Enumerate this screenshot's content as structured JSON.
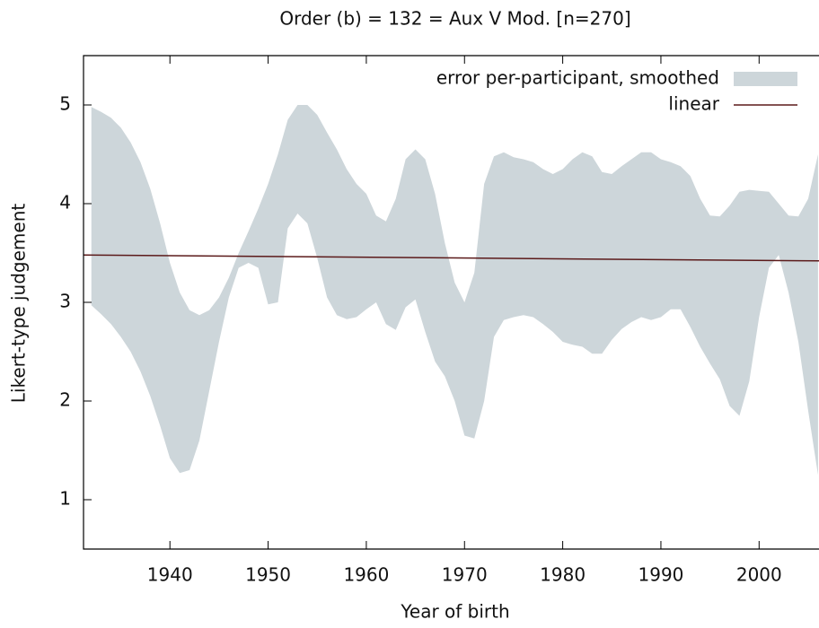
{
  "chart_data": {
    "type": "band_line",
    "title": "Order (b) = 132 = Aux V Mod. [n=270]",
    "xlabel": "Year of birth",
    "ylabel": "Likert-type judgement",
    "xlim": [
      1931.2,
      2006.1
    ],
    "ylim": [
      0.5,
      5.5
    ],
    "xticks": [
      1940,
      1950,
      1960,
      1970,
      1980,
      1990,
      2000
    ],
    "yticks": [
      1,
      2,
      3,
      4,
      5
    ],
    "legend": "top right",
    "band": {
      "name": "error per-participant, smoothed",
      "color": "#cdd6da",
      "x": [
        1932,
        1933,
        1934,
        1935,
        1936,
        1937,
        1938,
        1939,
        1940,
        1941,
        1942,
        1943,
        1944,
        1945,
        1946,
        1947,
        1948,
        1949,
        1950,
        1951,
        1952,
        1953,
        1954,
        1955,
        1956,
        1957,
        1958,
        1959,
        1960,
        1961,
        1962,
        1963,
        1964,
        1965,
        1966,
        1967,
        1968,
        1969,
        1970,
        1971,
        1972,
        1973,
        1974,
        1975,
        1976,
        1977,
        1978,
        1979,
        1980,
        1981,
        1982,
        1983,
        1984,
        1985,
        1986,
        1987,
        1988,
        1989,
        1990,
        1991,
        1992,
        1993,
        1994,
        1995,
        1996,
        1997,
        1998,
        1999,
        2000,
        2001,
        2002,
        2003,
        2004,
        2005,
        2006
      ],
      "upper": [
        4.98,
        4.93,
        4.87,
        4.77,
        4.62,
        4.42,
        4.15,
        3.8,
        3.4,
        3.1,
        2.92,
        2.87,
        2.92,
        3.05,
        3.25,
        3.5,
        3.72,
        3.95,
        4.2,
        4.5,
        4.85,
        5.0,
        5.0,
        4.9,
        4.72,
        4.55,
        4.35,
        4.2,
        4.1,
        3.88,
        3.82,
        4.05,
        4.45,
        4.55,
        4.45,
        4.1,
        3.6,
        3.2,
        3.0,
        3.3,
        4.2,
        4.48,
        4.52,
        4.47,
        4.45,
        4.42,
        4.35,
        4.3,
        4.35,
        4.45,
        4.52,
        4.48,
        4.32,
        4.3,
        4.38,
        4.45,
        4.52,
        4.52,
        4.45,
        4.42,
        4.38,
        4.28,
        4.05,
        3.88,
        3.87,
        3.98,
        4.12,
        4.14,
        4.13,
        4.12,
        4.0,
        3.88,
        3.87,
        4.05,
        4.5
      ],
      "lower": [
        2.97,
        2.88,
        2.78,
        2.65,
        2.5,
        2.3,
        2.05,
        1.75,
        1.42,
        1.27,
        1.3,
        1.6,
        2.1,
        2.6,
        3.05,
        3.35,
        3.4,
        3.35,
        2.98,
        3.0,
        3.75,
        3.9,
        3.8,
        3.45,
        3.05,
        2.87,
        2.83,
        2.85,
        2.93,
        3.0,
        2.78,
        2.72,
        2.95,
        3.03,
        2.7,
        2.4,
        2.25,
        2.0,
        1.65,
        1.62,
        2.0,
        2.65,
        2.82,
        2.85,
        2.87,
        2.85,
        2.78,
        2.7,
        2.6,
        2.57,
        2.55,
        2.48,
        2.48,
        2.62,
        2.73,
        2.8,
        2.85,
        2.82,
        2.85,
        2.93,
        2.93,
        2.75,
        2.55,
        2.38,
        2.22,
        1.95,
        1.85,
        2.2,
        2.85,
        3.35,
        3.48,
        3.1,
        2.6,
        1.9,
        1.25
      ]
    },
    "line": {
      "name": "linear",
      "color": "#5b1a1a",
      "x": [
        1931.2,
        2006.1
      ],
      "values": [
        3.48,
        3.42
      ]
    }
  }
}
